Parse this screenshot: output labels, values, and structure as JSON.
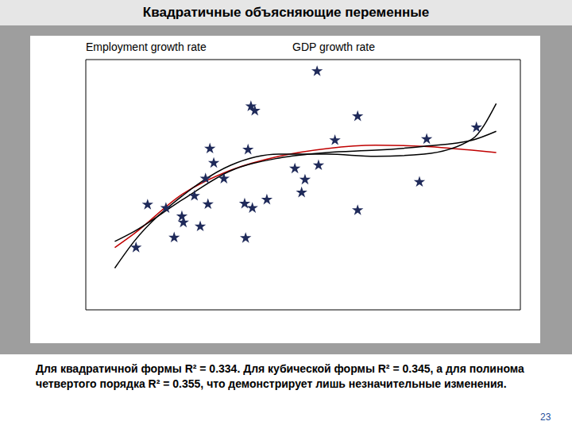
{
  "slide": {
    "title": "Квадратичные объясняющие переменные",
    "caption": "Для квадратичной формы R² = 0.334. Для кубической формы R² = 0.345, а для полинома четвертого порядка R² = 0.355, что демонстрирует лишь незначительные изменения.",
    "page": "23"
  },
  "chart_data": {
    "type": "scatter",
    "ylabel": "Employment growth rate",
    "xlabel": "GDP growth rate",
    "xlim": [
      0,
      9
    ],
    "xticks": [
      0,
      1,
      2,
      3,
      4,
      5,
      6,
      7,
      8,
      9
    ],
    "ylim": [
      -1,
      3.5
    ],
    "yticks": [
      -1,
      0,
      1,
      2,
      3
    ],
    "tick_labels": false,
    "grid": false,
    "series": [
      {
        "type": "scatter",
        "marker": "star",
        "color": "#1f2a5a",
        "x": [
          1.04,
          1.28,
          1.66,
          1.83,
          1.99,
          2.02,
          2.25,
          2.37,
          2.48,
          2.53,
          2.57,
          2.65,
          2.86,
          3.29,
          3.31,
          3.36,
          3.42,
          3.45,
          3.5,
          3.75,
          4.33,
          4.47,
          4.54,
          4.79,
          4.82,
          5.16,
          5.63,
          5.63,
          6.91,
          7.06,
          8.09
        ],
        "values": [
          0.12,
          0.89,
          0.83,
          0.3,
          0.68,
          0.57,
          1.05,
          0.5,
          1.36,
          0.9,
          1.9,
          1.64,
          1.36,
          0.91,
          0.29,
          1.88,
          2.66,
          0.83,
          2.58,
          0.98,
          1.54,
          1.11,
          1.34,
          3.29,
          1.6,
          2.05,
          2.48,
          0.79,
          1.3,
          2.07,
          2.28
        ]
      },
      {
        "type": "line",
        "line_style": "solid",
        "color": "#c00000",
        "x": [
          0.6,
          1,
          2,
          3,
          4,
          5,
          6,
          7,
          8,
          8.5
        ],
        "values": [
          0.12,
          0.37,
          1.08,
          1.51,
          1.76,
          1.9,
          1.96,
          1.94,
          1.87,
          1.83
        ]
      },
      {
        "type": "line",
        "line_style": "solid",
        "color": "#000000",
        "x": [
          0.6,
          1,
          2,
          3,
          4,
          5,
          6,
          7,
          8,
          8.5
        ],
        "values": [
          0.23,
          0.41,
          0.98,
          1.5,
          1.73,
          1.83,
          1.87,
          1.94,
          2.05,
          2.21
        ]
      },
      {
        "type": "line",
        "line_style": "solid",
        "color": "#000000",
        "x": [
          0.6,
          1,
          2,
          3,
          4,
          5,
          6,
          7,
          8,
          8.5
        ],
        "values": [
          -0.25,
          0.23,
          1.05,
          1.6,
          1.8,
          1.8,
          1.76,
          1.8,
          2.07,
          2.71
        ]
      }
    ]
  }
}
